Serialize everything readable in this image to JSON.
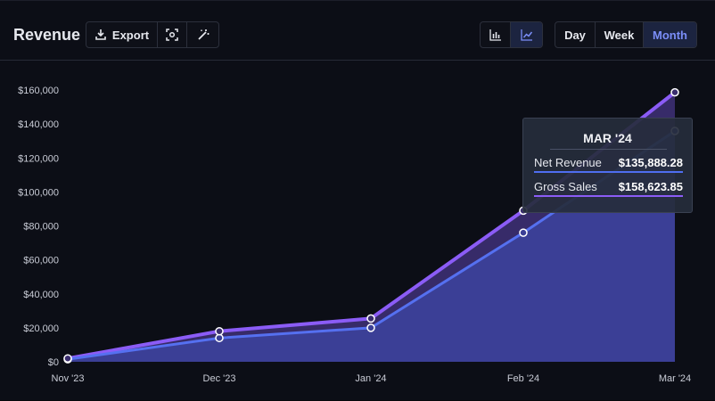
{
  "header": {
    "title": "Revenue",
    "export_label": "Export",
    "icons": [
      "download-icon",
      "screenshot-icon",
      "magic-wand-icon",
      "bar-chart-icon",
      "line-chart-icon"
    ],
    "range_options": [
      "Day",
      "Week",
      "Month"
    ],
    "selected_range": "Month",
    "selected_chart_type": "line"
  },
  "tooltip": {
    "title": "MAR '24",
    "rows": [
      {
        "label": "Net Revenue",
        "value": "$135,888.28",
        "color": "#4f6ef0"
      },
      {
        "label": "Gross Sales",
        "value": "$158,623.85",
        "color": "#8b5cf6"
      }
    ]
  },
  "colors": {
    "net_revenue": "#5570f0",
    "gross_sales": "#8b5cf6",
    "net_fill": "#3b3f96",
    "gross_fill": "#3a2d6e",
    "background": "#0c0e16",
    "active_button": "#7b8ef8"
  },
  "chart_data": {
    "type": "area",
    "categories": [
      "Nov '23",
      "Dec '23",
      "Jan '24",
      "Feb '24",
      "Mar '24"
    ],
    "series": [
      {
        "name": "Net Revenue",
        "values": [
          1500,
          14000,
          20000,
          76000,
          135888.28
        ]
      },
      {
        "name": "Gross Sales",
        "values": [
          2000,
          18000,
          25500,
          89000,
          158623.85
        ]
      }
    ],
    "yticks": [
      "$0",
      "$20,000",
      "$40,000",
      "$60,000",
      "$80,000",
      "$100,000",
      "$120,000",
      "$140,000",
      "$160,000"
    ],
    "ylim": [
      0,
      160000
    ],
    "grid": false,
    "legend": "none"
  }
}
